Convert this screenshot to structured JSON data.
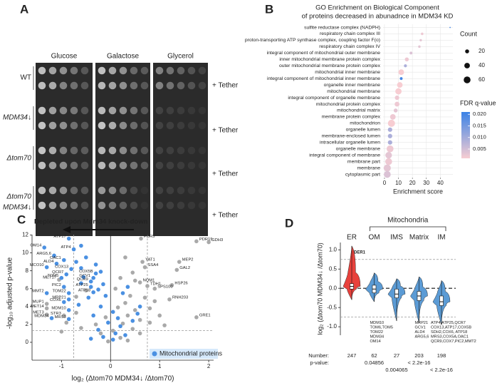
{
  "panel_a": {
    "label": "A",
    "conditions": [
      "Glucose",
      "Galactose",
      "Glycerol"
    ],
    "strains": [
      {
        "name": [
          "WT"
        ],
        "tether": "+ Tether"
      },
      {
        "name": [
          "MDM34↓"
        ],
        "tether": "+ Tether"
      },
      {
        "name": [
          "Δtom70"
        ],
        "tether": "+ Tether"
      },
      {
        "name": [
          "Δtom70",
          "MDM34↓"
        ],
        "tether": "+ Tether"
      }
    ]
  },
  "chart_data": [
    {
      "label": "B",
      "type": "dot",
      "title": [
        "GO Enrichment on Biological Component",
        "of proteins decreased in abunadnce in MDM34 KD"
      ],
      "x_label": "Enrichment score",
      "categories": [
        "sulfite reductase complex (NADPH)",
        "respiratory chain complex III",
        "proton-transporting ATP synthase complex, coupling factor F(o)",
        "respiratory chain complex IV",
        "integral component of mitochondrial outer membrane",
        "inner mitochondrial membrane protein complex",
        "outer mitochondrial membrane protein complex",
        "mitochondrial inner membrane",
        "integral component of mitochondrial inner membrane",
        "organelle inner membrane",
        "mitochondrial membrane",
        "integral component of organelle membrane",
        "mitochondrial protein complex",
        "mitochondrial matrix",
        "membrane protein complex",
        "mitochondrion",
        "organelle lumen",
        "membrane-enclosed lumen",
        "intracellular organelle lumen",
        "organelle membrane",
        "integral component of membrane",
        "membrane part",
        "membrane",
        "cytoplasmic part"
      ],
      "values": [
        47,
        27,
        26,
        25,
        19,
        16,
        15,
        12,
        12,
        11,
        10,
        9,
        9,
        8,
        6,
        5,
        4,
        4,
        4,
        4,
        3,
        3,
        2,
        2
      ],
      "counts": [
        2,
        8,
        7,
        8,
        10,
        20,
        12,
        40,
        10,
        40,
        50,
        25,
        30,
        20,
        40,
        65,
        25,
        25,
        25,
        60,
        55,
        60,
        65,
        60
      ],
      "fdr": [
        0.02,
        0.002,
        0.003,
        0.003,
        0.004,
        0.002,
        0.009,
        0.001,
        0.02,
        0.001,
        0.001,
        0.002,
        0.002,
        0.003,
        0.002,
        0.001,
        0.009,
        0.009,
        0.009,
        0.002,
        0.003,
        0.002,
        0.003,
        0.004
      ],
      "xlim": [
        -1,
        49
      ],
      "xticks": [
        0,
        10,
        20,
        30,
        40
      ],
      "grid": true,
      "size_legend_title": "Count",
      "size_ticks": [
        20,
        40,
        60
      ],
      "color_legend_title": "FDR q-value",
      "color_lim": [
        0.001,
        0.021
      ],
      "color_ticks": [
        {
          "value": 0.02,
          "label": "0.020"
        },
        {
          "value": 0.015,
          "label": "0.015"
        },
        {
          "value": 0.01,
          "label": "0.010"
        },
        {
          "value": 0.005,
          "label": "0.005"
        }
      ],
      "colors": [
        "#f7cdd2",
        "#3b82e6"
      ]
    },
    {
      "label": "C",
      "type": "scatter",
      "annotation": "Depleted upon Mdm34 knock-down",
      "x_label": "log₂ (Δtom70 MDM34↓ /Δtom70)",
      "y_label": "-log₁₀ adjusted p-value",
      "xlim": [
        -1.6,
        2.1
      ],
      "ylim": [
        -2,
        13
      ],
      "xticks": [
        -1,
        0,
        1,
        2
      ],
      "yticks": [
        0,
        2,
        4,
        6,
        8,
        10,
        12
      ],
      "vlines": [
        -0.75,
        0.75
      ],
      "hline": 1.3,
      "legend_position": "lower right",
      "series": [
        {
          "name": "Mitochondrial proteins",
          "color": "#4a90e2",
          "x": [
            -0.85,
            -1.35,
            -0.75,
            -1.15,
            -0.95,
            -1.1,
            -1.3,
            -0.8,
            -0.9,
            -1.0,
            -0.3,
            -0.35,
            -0.4,
            -0.4,
            -0.95,
            -0.35,
            -0.85,
            -1.3,
            -0.85,
            -0.95,
            -0.85,
            -1.2,
            -0.85,
            -0.6,
            -0.5,
            -0.7,
            -0.3,
            -0.6,
            -0.2,
            -0.55,
            -0.15,
            -0.6,
            -0.25,
            -0.1,
            -0.45,
            -0.65,
            -0.2,
            0.05,
            -0.35,
            0.15,
            -0.05,
            0.2,
            -0.25,
            0.1,
            -0.15,
            0.05,
            0.3,
            -0.4,
            0.45,
            0.6,
            0.25,
            0.35,
            0.55
          ],
          "values": [
            11.6,
            10.6,
            10.4,
            9.7,
            9.2,
            8.8,
            8.4,
            8.2,
            7.6,
            7.2,
            7.7,
            7.2,
            6.8,
            6.2,
            6.2,
            5.6,
            5.5,
            5.5,
            4.8,
            4.5,
            3.6,
            2.7,
            2.6,
            10.8,
            9.5,
            9.0,
            8.7,
            8.3,
            7.9,
            7.3,
            6.5,
            6.6,
            5.9,
            5.2,
            5.0,
            4.2,
            4.0,
            3.4,
            3.0,
            2.7,
            2.2,
            1.8,
            1.4,
            1.0,
            0.6,
            0.3,
            0.8,
            0.4,
            2.4,
            4.0,
            5.5,
            6.2,
            3.2
          ],
          "labels": [
            "ATP17",
            "OM14",
            "ATP4",
            "ARG5,6",
            "OAC1",
            "ALD4",
            "MCO10",
            "COX13",
            "QCR7",
            "TOM5",
            "COX5B",
            "GCV1",
            "QCR9",
            "ATP25",
            "PIC2",
            "ATP18",
            "TOM22",
            "MMT2",
            "MRP21",
            "COX6",
            "MDM10",
            "MDM34",
            "MRS3",
            null,
            null,
            null,
            null,
            null,
            null,
            null,
            null,
            null,
            null,
            null,
            null,
            null,
            null,
            null,
            null,
            null,
            null,
            null,
            null,
            null,
            null,
            null,
            null,
            null,
            null,
            null,
            null,
            null,
            null
          ]
        },
        {
          "color": "#a9a9a9",
          "x": [
            0.62,
            1.75,
            2.0,
            0.65,
            1.4,
            1.35,
            0.7,
            0.6,
            0.75,
            0.9,
            1.25,
            1.2,
            1.75,
            -1.05,
            -1.3,
            -1.3,
            -1.3,
            -0.95,
            0.3,
            0.45,
            0.2,
            0.5,
            0.1,
            0.4,
            0.7,
            0.9,
            0.3,
            0.8,
            0.15,
            0.5,
            1.0,
            0.35,
            0.6,
            -0.1,
            0.25,
            0.8,
            -0.3,
            1.1,
            0.45,
            0.05,
            -0.2,
            0.6,
            0.2,
            -0.05,
            0.35,
            -0.7,
            -0.9,
            -0.6,
            -0.5,
            -0.7,
            -1.0
          ],
          "values": [
            11.6,
            11.3,
            11.2,
            9.0,
            9.0,
            8.1,
            8.4,
            6.7,
            6.3,
            6.0,
            6.4,
            4.8,
            2.8,
            7.0,
            4.3,
            3.8,
            3.1,
            3.0,
            9.5,
            7.8,
            7.2,
            6.9,
            6.0,
            5.2,
            5.0,
            4.6,
            4.4,
            3.8,
            3.9,
            3.6,
            3.0,
            3.0,
            2.5,
            2.8,
            2.1,
            2.2,
            2.0,
            1.9,
            1.5,
            1.3,
            1.0,
            1.0,
            0.5,
            0.1,
            0.2,
            3.3,
            2.2,
            1.6,
            5.8,
            5.1,
            1.2
          ],
          "labels": [
            "PDR5",
            "PDR15",
            "GDH3",
            "YAT1",
            "MEP2",
            "GAL2",
            "SSA4",
            "NQM1",
            "TDH1",
            "SPS100",
            "HSP26",
            "RNH203",
            "GRE1",
            "MET17",
            "MUP1",
            "MET14",
            "MET3",
            "STR3",
            null,
            null,
            null,
            null,
            null,
            null,
            null,
            null,
            null,
            null,
            null,
            null,
            null,
            null,
            null,
            null,
            null,
            null,
            null,
            null,
            null,
            null,
            null,
            null,
            null,
            null,
            null,
            null,
            null,
            null,
            null,
            null,
            null
          ]
        }
      ]
    },
    {
      "label": "D",
      "type": "violin",
      "group_label": "Mitochondria",
      "y_label": "log₂ (Δtom70 MDM34↓ /Δtom70)",
      "categories": [
        "ER",
        "OM",
        "IMS",
        "Matrix",
        "IM"
      ],
      "colors": [
        "#e8413c",
        "#5b9bd5",
        "#5b9bd5",
        "#5b9bd5",
        "#5b9bd5"
      ],
      "min": [
        -0.3,
        -0.35,
        -0.85,
        -0.9,
        -0.95
      ],
      "q1": [
        -0.02,
        -0.12,
        -0.25,
        -0.32,
        -0.45
      ],
      "median": [
        0.05,
        -0.02,
        -0.15,
        -0.2,
        -0.35
      ],
      "q3": [
        0.12,
        0.08,
        -0.02,
        -0.08,
        -0.2
      ],
      "max": [
        1.1,
        0.4,
        0.25,
        0.3,
        0.2
      ],
      "ylim": [
        -1.22,
        1.19
      ],
      "yticks": [
        {
          "value": 1,
          "label": "1.0"
        },
        {
          "value": 0.5,
          "label": "0.5"
        },
        {
          "value": 0,
          "label": "0.0"
        },
        {
          "value": -0.5,
          "label": "-0.5"
        },
        {
          "value": -1,
          "label": "-1.0"
        }
      ],
      "hlines": [
        0.75,
        -0.75
      ],
      "n_label": "Number:",
      "n": [
        247,
        62,
        27,
        203,
        198
      ],
      "p_label": "p-value:",
      "p_values": [
        null,
        "0.04856",
        "0.004065",
        "< 2.2e-16",
        "< 2.2e-16"
      ],
      "gene_labels": [
        [
          "DER1"
        ],
        [
          "MDM10",
          "TOM6,TOM5",
          "TOM22",
          "MDM34",
          "OM14"
        ],
        null,
        [
          "MRP21",
          "GCV1",
          "ALD4",
          "ARG5,6"
        ],
        [
          "ATP4,ATP25,QCR7",
          "COX13,ATP17,COX5B",
          "SDH2,COX6, ATP18",
          "MRS3,COX5A,OAC1",
          "QCR9,COX7,PIC2,MMT2"
        ]
      ]
    }
  ]
}
